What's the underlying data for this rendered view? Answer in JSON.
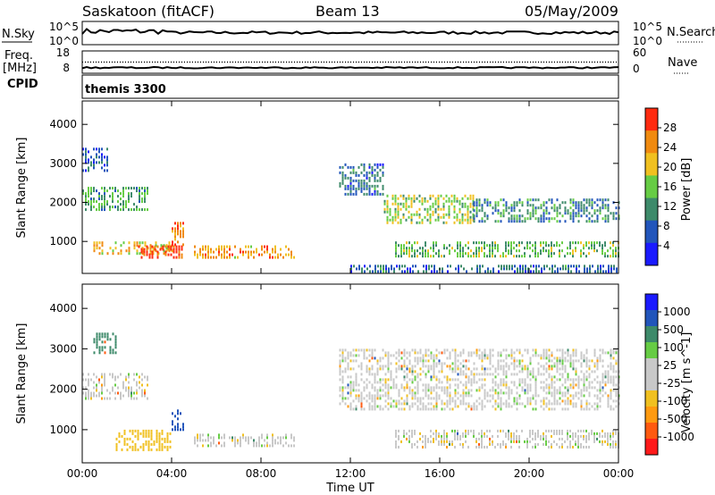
{
  "header": {
    "station": "Saskatoon (fitACF)",
    "beam": "Beam 13",
    "date": "05/May/2009"
  },
  "noise_panel": {
    "left_label": "N.Sky",
    "right_label": "N.Search",
    "left_ticks": [
      "10^5",
      "10^0"
    ],
    "right_ticks": [
      "10^5",
      "10^0"
    ]
  },
  "freq_panel": {
    "left_label_1": "Freq.",
    "left_label_2": "[MHz]",
    "right_label": "Nave",
    "left_ticks": [
      "18",
      "8"
    ],
    "right_ticks": [
      "60",
      "0"
    ],
    "freq_level_mhz": 10.5,
    "nave_level": 30
  },
  "cpid": {
    "label": "CPID",
    "value": "themis 3300"
  },
  "colors": {
    "power_scale": [
      "#1a1aff",
      "#2255bb",
      "#3d8a6a",
      "#66cc44",
      "#f0c020",
      "#f08a10",
      "#ff2b10"
    ],
    "velocity_scale": [
      "#ff1a1a",
      "#ff5a10",
      "#ff9a10",
      "#f0c020",
      "#c8c8c8",
      "#c8c8c8",
      "#66cc44",
      "#3d8a6a",
      "#2255bb",
      "#1a1aff"
    ]
  },
  "chart_data": [
    {
      "type": "heatmap",
      "id": "power",
      "ylabel": "Slant Range [km]",
      "ylim": [
        180,
        4600
      ],
      "yticks": [
        "4000",
        "3000",
        "2000",
        "1000"
      ],
      "xlim": [
        "00:00",
        "24:00"
      ],
      "xticks": [
        "00:00",
        "04:00",
        "08:00",
        "12:00",
        "16:00",
        "20:00",
        "00:00"
      ],
      "colorbar": {
        "label": "Power [dB]",
        "range": [
          0,
          30
        ],
        "ticks": [
          "28",
          "24",
          "20",
          "16",
          "12",
          "8",
          "4"
        ]
      },
      "echo_regions": [
        {
          "t_start": 0.0,
          "t_end": 3.0,
          "range_km": [
            1800,
            2400
          ],
          "power_db": 12
        },
        {
          "t_start": 0.0,
          "t_end": 1.2,
          "range_km": [
            2800,
            3400
          ],
          "power_db": 6
        },
        {
          "t_start": 0.5,
          "t_end": 4.0,
          "range_km": [
            700,
            1000
          ],
          "power_db": 20
        },
        {
          "t_start": 2.5,
          "t_end": 4.5,
          "range_km": [
            600,
            900
          ],
          "power_db": 28
        },
        {
          "t_start": 4.0,
          "t_end": 4.6,
          "range_km": [
            900,
            1500
          ],
          "power_db": 24
        },
        {
          "t_start": 5.0,
          "t_end": 9.5,
          "range_km": [
            600,
            900
          ],
          "power_db": 22
        },
        {
          "t_start": 11.5,
          "t_end": 13.5,
          "range_km": [
            2200,
            3000
          ],
          "power_db": 8
        },
        {
          "t_start": 13.5,
          "t_end": 17.5,
          "range_km": [
            1500,
            2200
          ],
          "power_db": 16
        },
        {
          "t_start": 14.0,
          "t_end": 24.0,
          "range_km": [
            600,
            1000
          ],
          "power_db": 14
        },
        {
          "t_start": 17.5,
          "t_end": 24.0,
          "range_km": [
            1500,
            2100
          ],
          "power_db": 10
        },
        {
          "t_start": 12.0,
          "t_end": 24.0,
          "range_km": [
            200,
            400
          ],
          "power_db": 8
        }
      ]
    },
    {
      "type": "heatmap",
      "id": "velocity",
      "ylabel": "Slant Range [km]",
      "ylim": [
        180,
        4600
      ],
      "yticks": [
        "4000",
        "3000",
        "2000",
        "1000"
      ],
      "xlabel": "Time UT",
      "xlim": [
        "00:00",
        "24:00"
      ],
      "xticks": [
        "00:00",
        "04:00",
        "08:00",
        "12:00",
        "16:00",
        "20:00",
        "00:00"
      ],
      "colorbar": {
        "label": "Velocity [m s^-1]",
        "ticks": [
          "1000",
          "500",
          "100",
          "25",
          "-25",
          "-100",
          "-500",
          "-1000"
        ]
      },
      "echo_regions": [
        {
          "t_start": 0.0,
          "t_end": 3.0,
          "range_km": [
            1800,
            2400
          ],
          "velocity": 0
        },
        {
          "t_start": 0.5,
          "t_end": 1.5,
          "range_km": [
            2900,
            3400
          ],
          "velocity": 300
        },
        {
          "t_start": 1.5,
          "t_end": 4.0,
          "range_km": [
            500,
            1000
          ],
          "velocity": -60
        },
        {
          "t_start": 4.0,
          "t_end": 4.6,
          "range_km": [
            1000,
            1500
          ],
          "velocity": 800
        },
        {
          "t_start": 5.0,
          "t_end": 9.5,
          "range_km": [
            600,
            900
          ],
          "velocity": 0
        },
        {
          "t_start": 11.5,
          "t_end": 24.0,
          "range_km": [
            1500,
            3000
          ],
          "velocity": 0
        },
        {
          "t_start": 14.0,
          "t_end": 24.0,
          "range_km": [
            600,
            1000
          ],
          "velocity": 0
        }
      ]
    }
  ]
}
